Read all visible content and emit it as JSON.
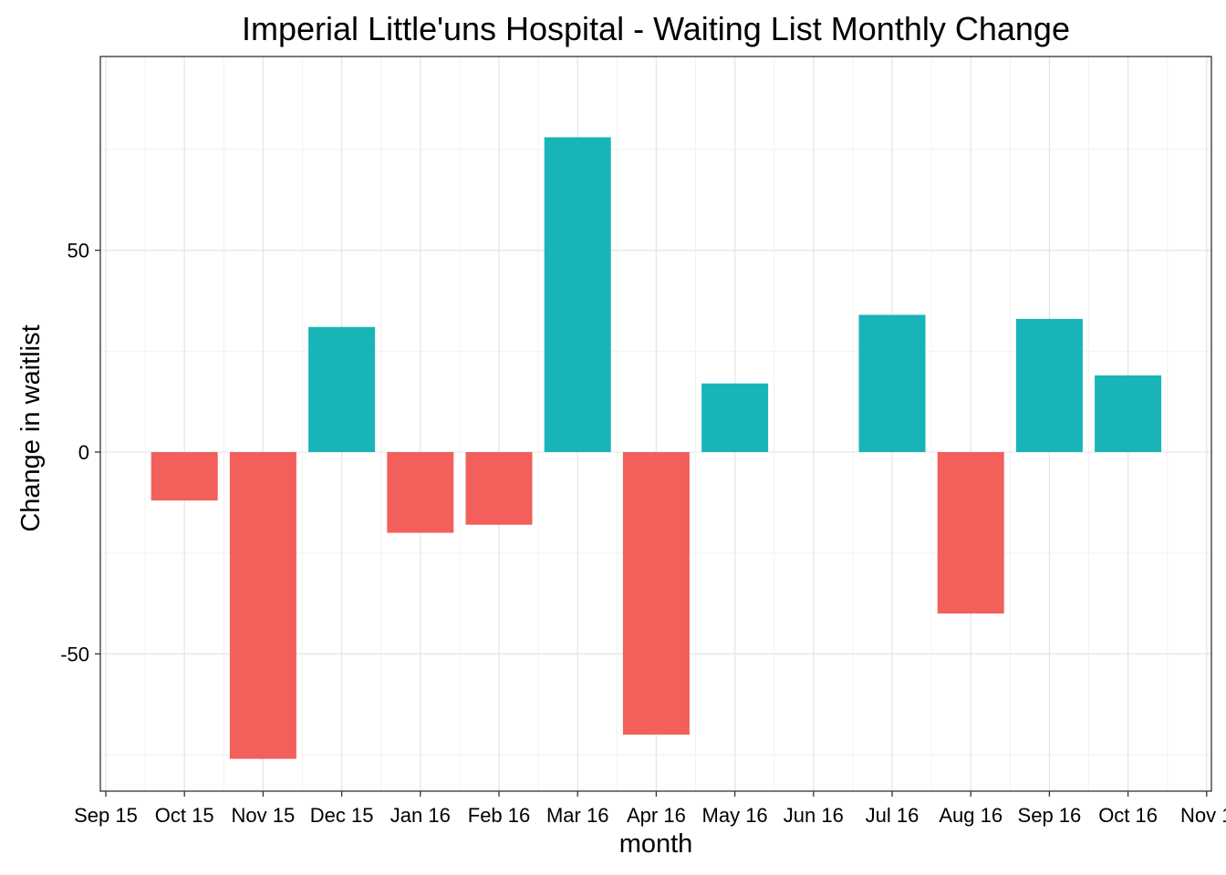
{
  "chart_data": {
    "type": "bar",
    "title": "Imperial Little'uns Hospital - Waiting List Monthly Change",
    "xlabel": "month",
    "ylabel": "Change in waitlist",
    "x_tick_labels": [
      "Sep 15",
      "Oct 15",
      "Nov 15",
      "Dec 15",
      "Jan 16",
      "Feb 16",
      "Mar 16",
      "Apr 16",
      "May 16",
      "Jun 16",
      "Jul 16",
      "Aug 16",
      "Sep 16",
      "Oct 16",
      "Nov 1"
    ],
    "y_ticks": [
      -50,
      0,
      50
    ],
    "ylim": [
      -84,
      98
    ],
    "categories": [
      "Oct 15",
      "Nov 15",
      "Dec 15",
      "Jan 16",
      "Feb 16",
      "Mar 16",
      "Apr 16",
      "May 16",
      "Jun 16",
      "Jul 16",
      "Aug 16",
      "Sep 16",
      "Oct 16"
    ],
    "values": [
      -12,
      -76,
      31,
      -20,
      -18,
      78,
      -70,
      17,
      0,
      34,
      -40,
      33,
      19
    ],
    "colors": {
      "positive": "#19b4b8",
      "negative": "#f35f5b"
    },
    "grid": true,
    "legend": "none"
  }
}
